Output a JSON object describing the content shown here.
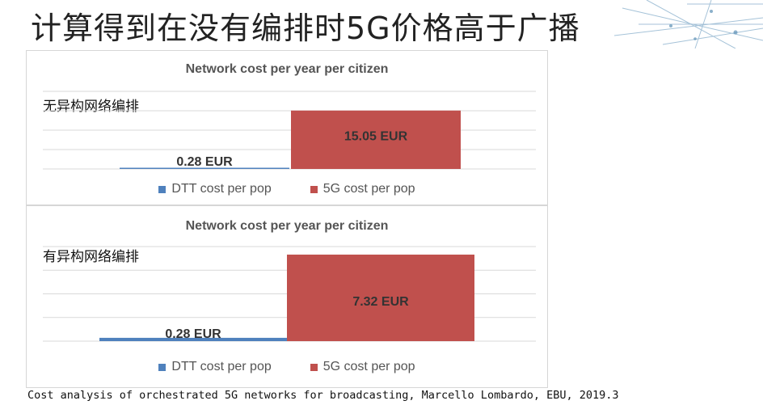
{
  "slide": {
    "title": "计算得到在没有编排时5G价格高于广播",
    "citation": "Cost analysis of orchestrated 5G networks for broadcasting, Marcello Lombardo, EBU, 2019.3"
  },
  "colors": {
    "dtt": "#4f81bd",
    "fiveg": "#c0504d",
    "grid": "#d9d9d9"
  },
  "chart_data": [
    {
      "type": "bar",
      "title": "Network cost per year per citizen",
      "annotation": "无异构网络编排",
      "categories": [
        "DTT cost per pop",
        "5G cost per pop"
      ],
      "series": [
        {
          "name": "DTT cost per pop",
          "value": 0.28,
          "label": "0.28 EUR",
          "color": "#4f81bd"
        },
        {
          "name": "5G cost per pop",
          "value": 15.05,
          "label": "15.05 EUR",
          "color": "#c0504d"
        }
      ],
      "ylim": [
        0,
        20
      ],
      "grid": true,
      "legend": "bottom"
    },
    {
      "type": "bar",
      "title": "Network cost per year per citizen",
      "annotation": "有异构网络编排",
      "categories": [
        "DTT cost per pop",
        "5G cost per pop"
      ],
      "series": [
        {
          "name": "DTT cost per pop",
          "value": 0.28,
          "label": "0.28 EUR",
          "color": "#4f81bd"
        },
        {
          "name": "5G cost per pop",
          "value": 7.32,
          "label": "7.32 EUR",
          "color": "#c0504d"
        }
      ],
      "ylim": [
        0,
        8
      ],
      "grid": true,
      "legend": "bottom"
    }
  ]
}
